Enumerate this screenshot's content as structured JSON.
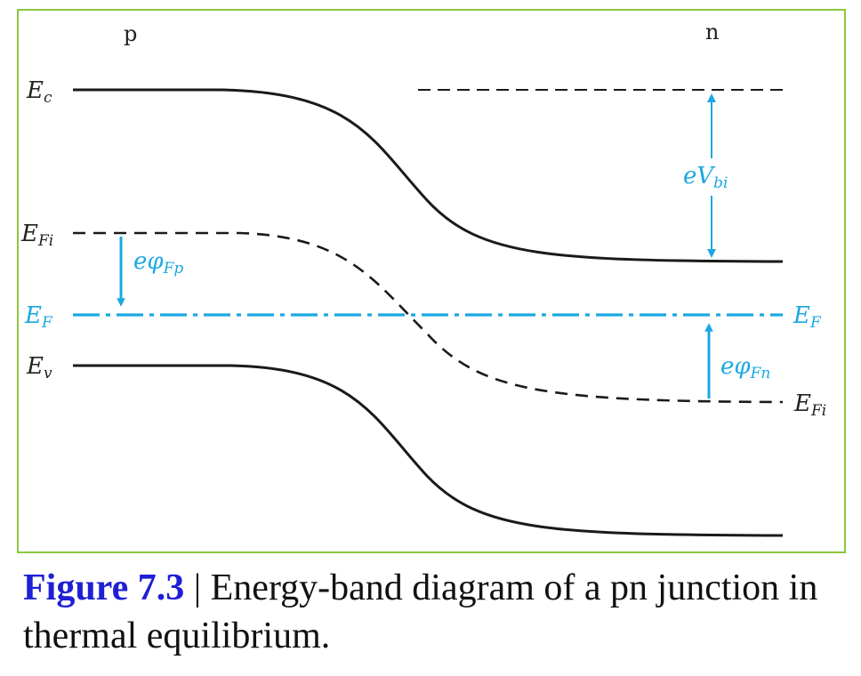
{
  "figure": {
    "number": "Figure 7.3",
    "separator": " | ",
    "caption": "Energy-band diagram of a pn junction in thermal equilibrium."
  },
  "regions": {
    "p": "p",
    "n": "n"
  },
  "labels": {
    "Ec": {
      "main": "E",
      "sub": "c"
    },
    "EFi_left": {
      "main": "E",
      "sub": "Fi"
    },
    "EF_left": {
      "main": "E",
      "sub": "F"
    },
    "Ev": {
      "main": "E",
      "sub": "v"
    },
    "EF_right": {
      "main": "E",
      "sub": "F"
    },
    "EFi_right": {
      "main": "E",
      "sub": "Fi"
    },
    "eVbi": {
      "main": "eV",
      "sub": "bi"
    },
    "ephiFp": {
      "main": "eφ",
      "sub": "Fp"
    },
    "ephiFn": {
      "main": "eφ",
      "sub": "Fn"
    }
  },
  "colors": {
    "frame": "#8cc63f",
    "band_lines": "#1a1a1a",
    "fermi_and_arrows": "#1ba8e0",
    "figure_number": "#1f1fd6"
  }
}
